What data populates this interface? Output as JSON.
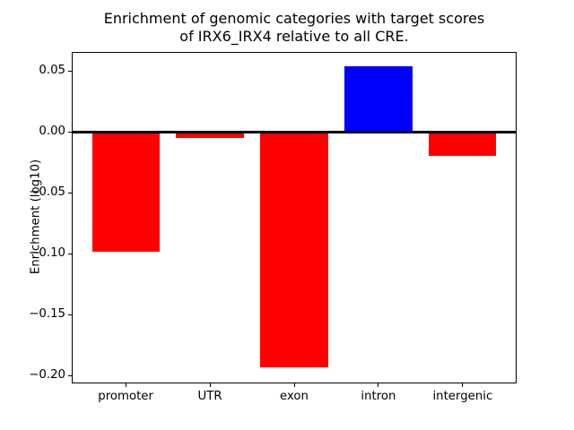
{
  "figure": {
    "background": "#ffffff"
  },
  "chart_data": {
    "type": "bar",
    "title": "Enrichment of genomic categories with target scores\nof IRX6_IRX4 relative to all CRE.",
    "xlabel": "",
    "ylabel": "Enrichment (log10)",
    "categories": [
      "promoter",
      "UTR",
      "exon",
      "intron",
      "intergenic"
    ],
    "values": [
      -0.098,
      -0.005,
      -0.193,
      0.054,
      -0.02
    ],
    "bar_colors": [
      "#ff0000",
      "#ff0000",
      "#ff0000",
      "#0000ff",
      "#ff0000"
    ],
    "positive_color": "#0000ff",
    "negative_color": "#ff0000",
    "ylim": [
      -0.206,
      0.066
    ],
    "xlim": [
      -0.64,
      4.64
    ],
    "bar_width": 0.8,
    "yticks": [
      0.05,
      0,
      -0.05,
      -0.1,
      -0.15,
      -0.2
    ],
    "ytick_labels": [
      "0.05",
      "0.00",
      "−0.05",
      "−0.10",
      "−0.15",
      "−0.20"
    ],
    "zero_line": true,
    "grid": false,
    "legend": "none"
  }
}
